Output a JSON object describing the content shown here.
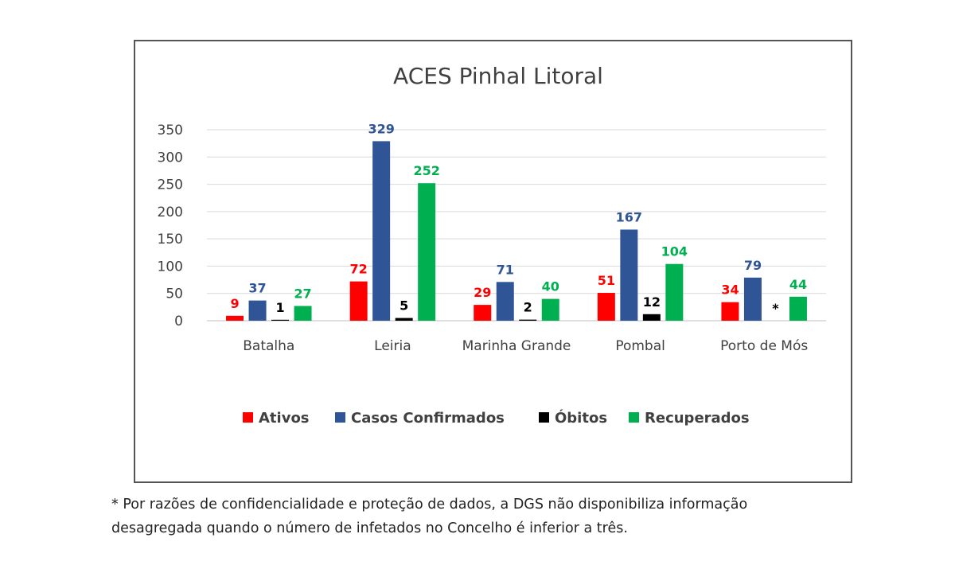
{
  "chart_data": {
    "type": "bar",
    "title": "ACES Pinhal Litoral",
    "categories": [
      "Batalha",
      "Leiria",
      "Marinha Grande",
      "Pombal",
      "Porto de Mós"
    ],
    "ylim": [
      0,
      350
    ],
    "yticks": [
      0,
      50,
      100,
      150,
      200,
      250,
      300,
      350
    ],
    "grid": true,
    "legend_position": "bottom",
    "series": [
      {
        "name": "Ativos",
        "color": "#ff0000",
        "values": [
          9,
          72,
          29,
          51,
          34
        ],
        "labels": [
          "9",
          "72",
          "29",
          "51",
          "34"
        ]
      },
      {
        "name": "Casos Confirmados",
        "color": "#2f5597",
        "values": [
          37,
          329,
          71,
          167,
          79
        ],
        "labels": [
          "37",
          "329",
          "71",
          "167",
          "79"
        ]
      },
      {
        "name": "Óbitos",
        "color": "#000000",
        "values": [
          1,
          5,
          2,
          12,
          null
        ],
        "labels": [
          "1",
          "5",
          "2",
          "12",
          "*"
        ]
      },
      {
        "name": "Recuperados",
        "color": "#00b050",
        "values": [
          27,
          252,
          40,
          104,
          44
        ],
        "labels": [
          "27",
          "252",
          "40",
          "104",
          "44"
        ]
      }
    ]
  },
  "footnote": {
    "line1": "* Por razões de confidencialidade e proteção de dados, a DGS não disponibiliza informação",
    "line2": "desagregada quando o número de infetados no Concelho é inferior a três."
  }
}
